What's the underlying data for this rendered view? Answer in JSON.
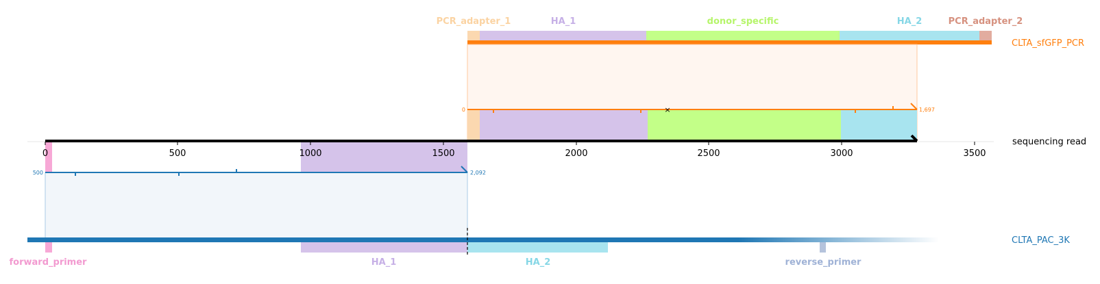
{
  "colors": {
    "PCR_adapter_1": "#fbd8b0",
    "HA_1": "#d5c3ea",
    "donor_specific": "#c3ff88",
    "HA_2": "#a8e4ef",
    "PCR_adapter_2": "#e2ac9f",
    "forward_primer": "#f7a8d6",
    "reverse_primer": "#b5c3dc",
    "orange": "#ff7f0e",
    "blue": "#1f77b4"
  },
  "top_features": [
    {
      "name": "PCR_adapter_1",
      "label": "PCR_adapter_1",
      "label_color": "#fbd3a2"
    },
    {
      "name": "HA_1",
      "label": "HA_1",
      "label_color": "#c6b0e6"
    },
    {
      "name": "donor_specific",
      "label": "donor_specific",
      "label_color": "#b6f56b"
    },
    {
      "name": "HA_2",
      "label": "HA_2",
      "label_color": "#86d7e6"
    },
    {
      "name": "PCR_adapter_2",
      "label": "PCR_adapter_2",
      "label_color": "#d6917f"
    }
  ],
  "bottom_features": [
    {
      "name": "forward_primer",
      "label": "forward_primer",
      "label_color": "#f29ad0"
    },
    {
      "name": "HA_1",
      "label": "HA_1",
      "label_color": "#c6b0e6"
    },
    {
      "name": "HA_2",
      "label": "HA_2",
      "label_color": "#86d7e6"
    },
    {
      "name": "reverse_primer",
      "label": "reverse_primer",
      "label_color": "#9fb2d6"
    }
  ],
  "read_axis": {
    "label": "sequencing read",
    "ticks": [
      "0",
      "500",
      "1000",
      "1500",
      "2000",
      "2500",
      "3000",
      "3500"
    ]
  },
  "top_reference": {
    "name": "CLTA_sfGFP_PCR",
    "alignment_start_label": "0",
    "alignment_end_label": "1,697"
  },
  "bottom_reference": {
    "name": "CLTA_PAC_3K",
    "alignment_start_label": "500",
    "alignment_end_label": "2,092"
  }
}
